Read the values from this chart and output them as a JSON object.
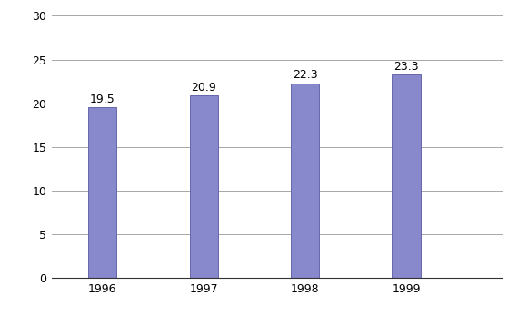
{
  "categories": [
    "1996",
    "1997",
    "1998",
    "1999"
  ],
  "values": [
    19.5,
    20.9,
    22.3,
    23.3
  ],
  "bar_color": "#8888CC",
  "bar_edgecolor": "#6666AA",
  "ylim": [
    0,
    30
  ],
  "yticks": [
    0,
    5,
    10,
    15,
    20,
    25,
    30
  ],
  "background_color": "#ffffff",
  "grid_color": "#999999",
  "label_fontsize": 9,
  "tick_fontsize": 9,
  "bar_width": 0.28,
  "xlim": [
    -0.5,
    3.95
  ]
}
